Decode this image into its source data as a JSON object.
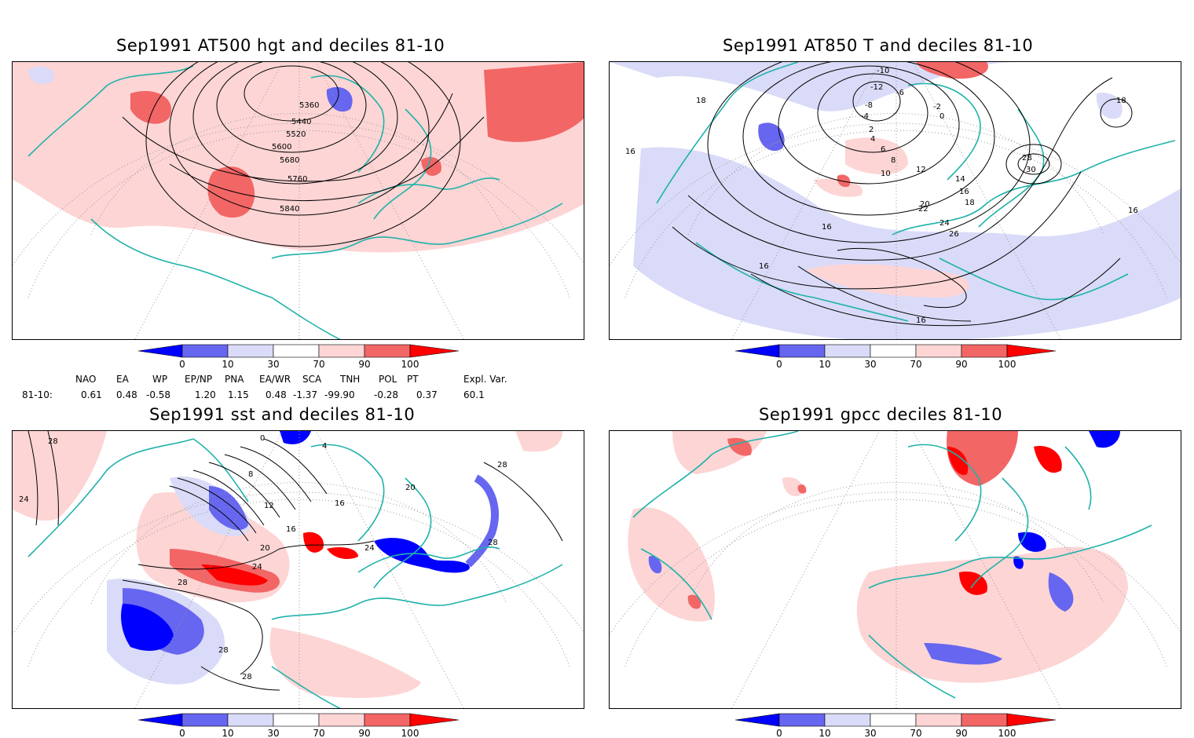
{
  "panels": [
    {
      "title": "Sep1991 AT500 hgt and deciles 81-10",
      "contour_labels": [
        "5360",
        "5440",
        "5520",
        "5600",
        "5680",
        "5760",
        "5840"
      ]
    },
    {
      "title": "Sep1991 AT850 T and deciles 81-10",
      "contour_labels": [
        "-10",
        "-12",
        "-8",
        "-6",
        "-4",
        "-2",
        "0",
        "2",
        "4",
        "6",
        "8",
        "10",
        "12",
        "14",
        "16",
        "18",
        "20",
        "22",
        "24",
        "26",
        "28",
        "30",
        "16",
        "18",
        "16",
        "16",
        "16",
        "18",
        "16"
      ]
    },
    {
      "title": "Sep1991 sst and deciles 81-10",
      "contour_labels": [
        "28",
        "24",
        "0",
        "4",
        "8",
        "12",
        "16",
        "20",
        "24",
        "24",
        "28",
        "28",
        "28",
        "28",
        "28",
        "16",
        "20"
      ]
    },
    {
      "title": "Sep1991 gpcc deciles 81-10",
      "contour_labels": []
    }
  ],
  "colorbar": {
    "ticks": [
      "0",
      "10",
      "30",
      "70",
      "90",
      "100"
    ],
    "colors": [
      "#0000ff",
      "#6666f0",
      "#d9dbf8",
      "#ffffff",
      "#fdd5d5",
      "#f26666",
      "#ff0000"
    ]
  },
  "indices": {
    "header": [
      "NAO",
      "EA",
      "WP",
      "EP/NP",
      "PNA",
      "EA/WR",
      "SCA",
      "TNH",
      "POL",
      "PT",
      "Expl. Var."
    ],
    "row_label": "81-10:",
    "values": [
      "0.61",
      "0.48",
      "-0.58",
      "1.20",
      "1.15",
      "0.48",
      "-1.37",
      "-99.90",
      "-0.28",
      "0.37",
      "60.1"
    ]
  },
  "colors": {
    "coast": "#20b2aa",
    "contour": "#000000",
    "grid": "#999999"
  }
}
